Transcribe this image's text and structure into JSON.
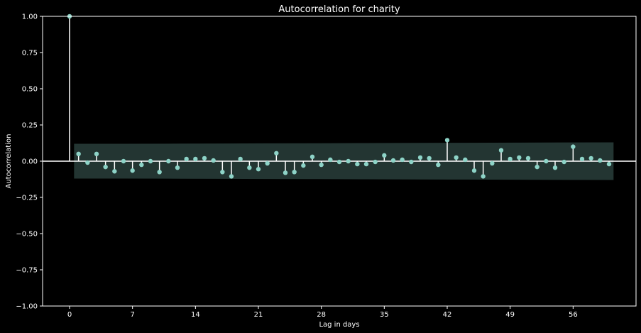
{
  "chart_data": {
    "type": "scatter",
    "title": "Autocorrelation for charity",
    "xlabel": "Lag in days",
    "ylabel": "Autocorrelation",
    "xlim": [
      -3,
      63
    ],
    "ylim": [
      -1.0,
      1.0
    ],
    "xticks": [
      0,
      7,
      14,
      21,
      28,
      35,
      42,
      49,
      56
    ],
    "yticks": [
      -1.0,
      -0.75,
      -0.5,
      -0.25,
      0.0,
      0.25,
      0.5,
      0.75,
      1.0
    ],
    "ytick_labels": [
      "−1.00",
      "−0.75",
      "−0.50",
      "−0.25",
      "0.00",
      "0.25",
      "0.50",
      "0.75",
      "1.00"
    ],
    "grid": false,
    "lags": [
      0,
      1,
      2,
      3,
      4,
      5,
      6,
      7,
      8,
      9,
      10,
      11,
      12,
      13,
      14,
      15,
      16,
      17,
      18,
      19,
      20,
      21,
      22,
      23,
      24,
      25,
      26,
      27,
      28,
      29,
      30,
      31,
      32,
      33,
      34,
      35,
      36,
      37,
      38,
      39,
      40,
      41,
      42,
      43,
      44,
      45,
      46,
      47,
      48,
      49,
      50,
      51,
      52,
      53,
      54,
      55,
      56,
      57,
      58,
      59,
      60
    ],
    "values": [
      1.0,
      0.05,
      -0.01,
      0.05,
      -0.04,
      -0.07,
      0.0,
      -0.065,
      -0.025,
      0.0,
      -0.075,
      0.0,
      -0.045,
      0.015,
      0.015,
      0.02,
      0.005,
      -0.075,
      -0.105,
      0.015,
      -0.045,
      -0.055,
      -0.015,
      0.055,
      -0.08,
      -0.075,
      -0.03,
      0.03,
      -0.025,
      0.01,
      -0.005,
      0.0,
      -0.02,
      -0.02,
      -0.005,
      0.04,
      0.005,
      0.01,
      -0.005,
      0.025,
      0.02,
      -0.025,
      0.145,
      0.025,
      0.01,
      -0.065,
      -0.105,
      -0.015,
      0.075,
      0.015,
      0.025,
      0.02,
      -0.04,
      0.0,
      -0.045,
      -0.005,
      0.1,
      0.015,
      0.02,
      0.005,
      -0.02
    ],
    "confint_upper": [
      0.12,
      0.12,
      0.121,
      0.122,
      0.123,
      0.124,
      0.125,
      0.126,
      0.127,
      0.128,
      0.129,
      0.13
    ],
    "confint_lower": [
      -0.12,
      -0.12,
      -0.121,
      -0.122,
      -0.123,
      -0.124,
      -0.125,
      -0.126,
      -0.127,
      -0.128,
      -0.129,
      -0.13
    ],
    "confint_x": [
      0.5,
      6,
      11,
      17,
      22,
      28,
      33,
      39,
      44,
      50,
      55,
      60.5
    ],
    "colors": {
      "background": "#000000",
      "axis": "#ffffff",
      "stem": "#ffffff",
      "marker": "#8dd3c7",
      "confidence_band": "#8dd3c7"
    }
  }
}
